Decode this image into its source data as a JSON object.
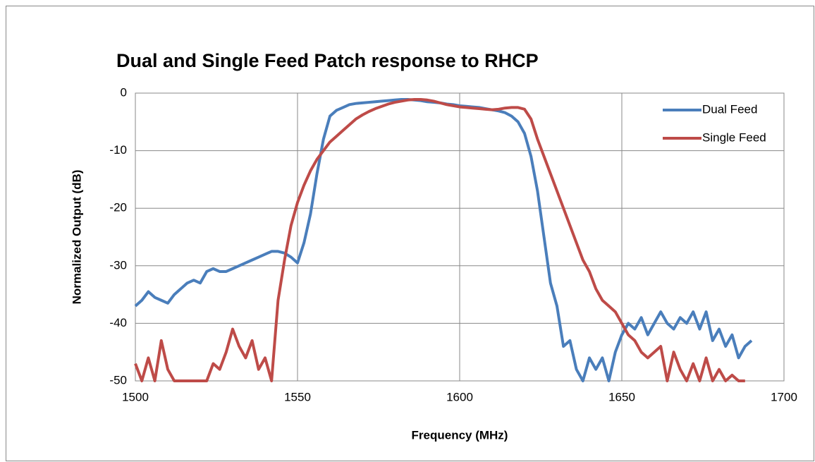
{
  "chart_data": {
    "type": "line",
    "title": "Dual and Single Feed Patch response to RHCP",
    "xlabel": "Frequency (MHz)",
    "ylabel": "Normalized Output (dB)",
    "x": [
      1500,
      1502,
      1504,
      1506,
      1508,
      1510,
      1512,
      1514,
      1516,
      1518,
      1520,
      1522,
      1524,
      1526,
      1528,
      1530,
      1532,
      1534,
      1536,
      1538,
      1540,
      1542,
      1544,
      1546,
      1548,
      1550,
      1552,
      1554,
      1556,
      1558,
      1560,
      1562,
      1564,
      1566,
      1568,
      1570,
      1572,
      1574,
      1576,
      1578,
      1580,
      1582,
      1584,
      1586,
      1588,
      1590,
      1592,
      1594,
      1596,
      1598,
      1600,
      1602,
      1604,
      1606,
      1608,
      1610,
      1612,
      1614,
      1616,
      1618,
      1620,
      1622,
      1624,
      1626,
      1628,
      1630,
      1632,
      1634,
      1636,
      1638,
      1640,
      1642,
      1644,
      1646,
      1648,
      1650,
      1652,
      1654,
      1656,
      1658,
      1660,
      1662,
      1664,
      1666,
      1668,
      1670,
      1672,
      1674,
      1676,
      1678,
      1680,
      1682,
      1684,
      1686,
      1688,
      1690
    ],
    "series": [
      {
        "name": "Dual Feed",
        "color": "#4a7ebb",
        "values": [
          -37,
          -36,
          -34.5,
          -35.5,
          -36,
          -36.5,
          -35,
          -34,
          -33,
          -32.5,
          -33,
          -31,
          -30.5,
          -31,
          -31,
          -30.5,
          -30,
          -29.5,
          -29,
          -28.5,
          -28,
          -27.5,
          -27.5,
          -27.8,
          -28.5,
          -29.5,
          -26,
          -21,
          -14,
          -8,
          -4,
          -3,
          -2.5,
          -2,
          -1.8,
          -1.7,
          -1.6,
          -1.5,
          -1.4,
          -1.3,
          -1.2,
          -1.1,
          -1.1,
          -1.2,
          -1.3,
          -1.5,
          -1.6,
          -1.7,
          -1.9,
          -2,
          -2.2,
          -2.3,
          -2.4,
          -2.5,
          -2.7,
          -2.9,
          -3.1,
          -3.4,
          -4,
          -5,
          -7,
          -11,
          -17,
          -25,
          -33,
          -37,
          -44,
          -43,
          -48,
          -50,
          -46,
          -48,
          -46,
          -50,
          -45,
          -42,
          -40,
          -41,
          -39,
          -42,
          -40,
          -38,
          -40,
          -41,
          -39,
          -40,
          -38,
          -41,
          -38,
          -43,
          -41,
          -44,
          -42,
          -46,
          -44,
          -43
        ]
      },
      {
        "name": "Single Feed",
        "color": "#be4b48",
        "values": [
          -47,
          -50,
          -46,
          -50,
          -43,
          -48,
          -50,
          -50,
          -50,
          -50,
          -50,
          -50,
          -47,
          -48,
          -45,
          -41,
          -44,
          -46,
          -43,
          -48,
          -46,
          -50,
          -36,
          -29,
          -23,
          -19,
          -16,
          -13.5,
          -11.5,
          -10,
          -8.5,
          -7.5,
          -6.5,
          -5.5,
          -4.5,
          -3.8,
          -3.2,
          -2.7,
          -2.3,
          -1.9,
          -1.6,
          -1.4,
          -1.2,
          -1.1,
          -1.1,
          -1.2,
          -1.4,
          -1.7,
          -2,
          -2.2,
          -2.4,
          -2.5,
          -2.6,
          -2.7,
          -2.8,
          -2.9,
          -2.8,
          -2.6,
          -2.5,
          -2.5,
          -2.8,
          -4.5,
          -8,
          -11,
          -14,
          -17,
          -20,
          -23,
          -26,
          -29,
          -31,
          -34,
          -36,
          -37,
          -38,
          -40,
          -42,
          -43,
          -45,
          -46,
          -45,
          -44,
          -50,
          -45,
          -48,
          -50,
          -47,
          -50,
          -46,
          -50,
          -48,
          -50,
          -49,
          -50,
          -50,
          null
        ]
      }
    ],
    "xlim": [
      1500,
      1700
    ],
    "xticks": [
      1500,
      1550,
      1600,
      1650,
      1700
    ],
    "ylim": [
      -50,
      0
    ],
    "yticks": [
      -50,
      -40,
      -30,
      -20,
      -10,
      0
    ],
    "grid": true,
    "legend": "top-right"
  }
}
